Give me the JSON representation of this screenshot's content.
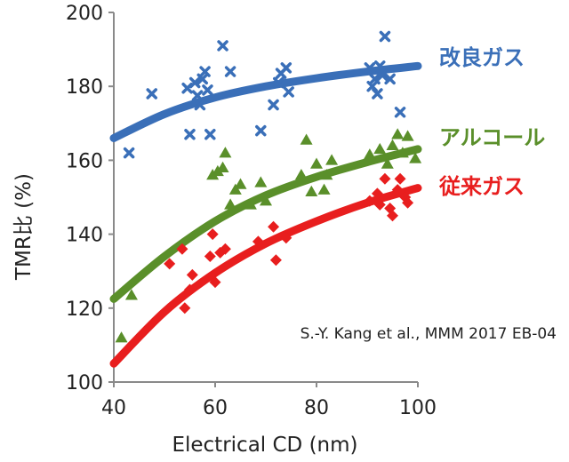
{
  "chart_data": {
    "type": "scatter",
    "xlabel": "Electrical CD (nm)",
    "ylabel": "TMR比 (%)",
    "xlim": [
      40,
      100
    ],
    "ylim": [
      100,
      200
    ],
    "xticks": [
      40,
      60,
      80,
      100
    ],
    "yticks": [
      100,
      120,
      140,
      160,
      180,
      200
    ],
    "grid": false,
    "annotation": "S.-Y. Kang et al., MMM 2017 EB-04",
    "series": [
      {
        "name": "改良ガス",
        "color": "#3a6fb8",
        "marker": "x",
        "points": [
          [
            43,
            162
          ],
          [
            47.5,
            178
          ],
          [
            54.5,
            179.5
          ],
          [
            55,
            167
          ],
          [
            56,
            181
          ],
          [
            56.5,
            177.5
          ],
          [
            57,
            175
          ],
          [
            57.5,
            182
          ],
          [
            58,
            184
          ],
          [
            58.5,
            179
          ],
          [
            59,
            167
          ],
          [
            61.5,
            191
          ],
          [
            63,
            184
          ],
          [
            69,
            168
          ],
          [
            71.5,
            175
          ],
          [
            72.5,
            181
          ],
          [
            73,
            183.5
          ],
          [
            74,
            185
          ],
          [
            74.5,
            178.5
          ],
          [
            90.5,
            185
          ],
          [
            91,
            180
          ],
          [
            91.5,
            182
          ],
          [
            92,
            178
          ],
          [
            92.5,
            185.5
          ],
          [
            93,
            183
          ],
          [
            93.5,
            193.5
          ],
          [
            94.5,
            182
          ],
          [
            96.5,
            173
          ]
        ],
        "fit": [
          [
            40,
            166
          ],
          [
            50,
            172.5
          ],
          [
            60,
            177
          ],
          [
            70,
            180
          ],
          [
            80,
            182.2
          ],
          [
            90,
            184
          ],
          [
            100,
            185.5
          ]
        ]
      },
      {
        "name": "アルコール",
        "color": "#5a8f2a",
        "marker": "triangle",
        "points": [
          [
            41.5,
            112
          ],
          [
            43.5,
            123.5
          ],
          [
            59.5,
            156
          ],
          [
            60.5,
            157
          ],
          [
            61.5,
            158
          ],
          [
            62,
            162
          ],
          [
            63,
            148
          ],
          [
            64,
            152
          ],
          [
            65,
            153.5
          ],
          [
            67,
            148
          ],
          [
            69,
            154
          ],
          [
            70,
            149
          ],
          [
            77,
            156
          ],
          [
            78,
            165.5
          ],
          [
            79,
            151.5
          ],
          [
            80,
            159
          ],
          [
            81.5,
            152
          ],
          [
            82,
            156
          ],
          [
            83,
            160
          ],
          [
            90.5,
            161.5
          ],
          [
            92.5,
            163
          ],
          [
            94,
            159
          ],
          [
            95,
            164
          ],
          [
            96,
            167
          ],
          [
            97,
            162
          ],
          [
            98,
            166.5
          ],
          [
            99.5,
            160.5
          ]
        ],
        "fit": [
          [
            40,
            122.5
          ],
          [
            50,
            134
          ],
          [
            60,
            143.5
          ],
          [
            70,
            150.5
          ],
          [
            80,
            155.5
          ],
          [
            90,
            159.5
          ],
          [
            100,
            163
          ]
        ]
      },
      {
        "name": "従来ガス",
        "color": "#e81e1e",
        "marker": "diamond",
        "points": [
          [
            51,
            132
          ],
          [
            53.5,
            136
          ],
          [
            54,
            120
          ],
          [
            55,
            125
          ],
          [
            55.5,
            129
          ],
          [
            59,
            134
          ],
          [
            59.5,
            140
          ],
          [
            60,
            127
          ],
          [
            61,
            135
          ],
          [
            62,
            136
          ],
          [
            68.5,
            138
          ],
          [
            71.5,
            142
          ],
          [
            72,
            133
          ],
          [
            74,
            139
          ],
          [
            90.5,
            149
          ],
          [
            92,
            151
          ],
          [
            92.5,
            148
          ],
          [
            93.5,
            155
          ],
          [
            94.5,
            147
          ],
          [
            95,
            145
          ],
          [
            96,
            152
          ],
          [
            96.5,
            155
          ],
          [
            97.5,
            150
          ],
          [
            98,
            148.5
          ]
        ],
        "fit": [
          [
            40,
            105
          ],
          [
            50,
            119
          ],
          [
            60,
            129.5
          ],
          [
            70,
            137.5
          ],
          [
            80,
            143.5
          ],
          [
            90,
            148.5
          ],
          [
            100,
            152.5
          ]
        ]
      }
    ]
  }
}
